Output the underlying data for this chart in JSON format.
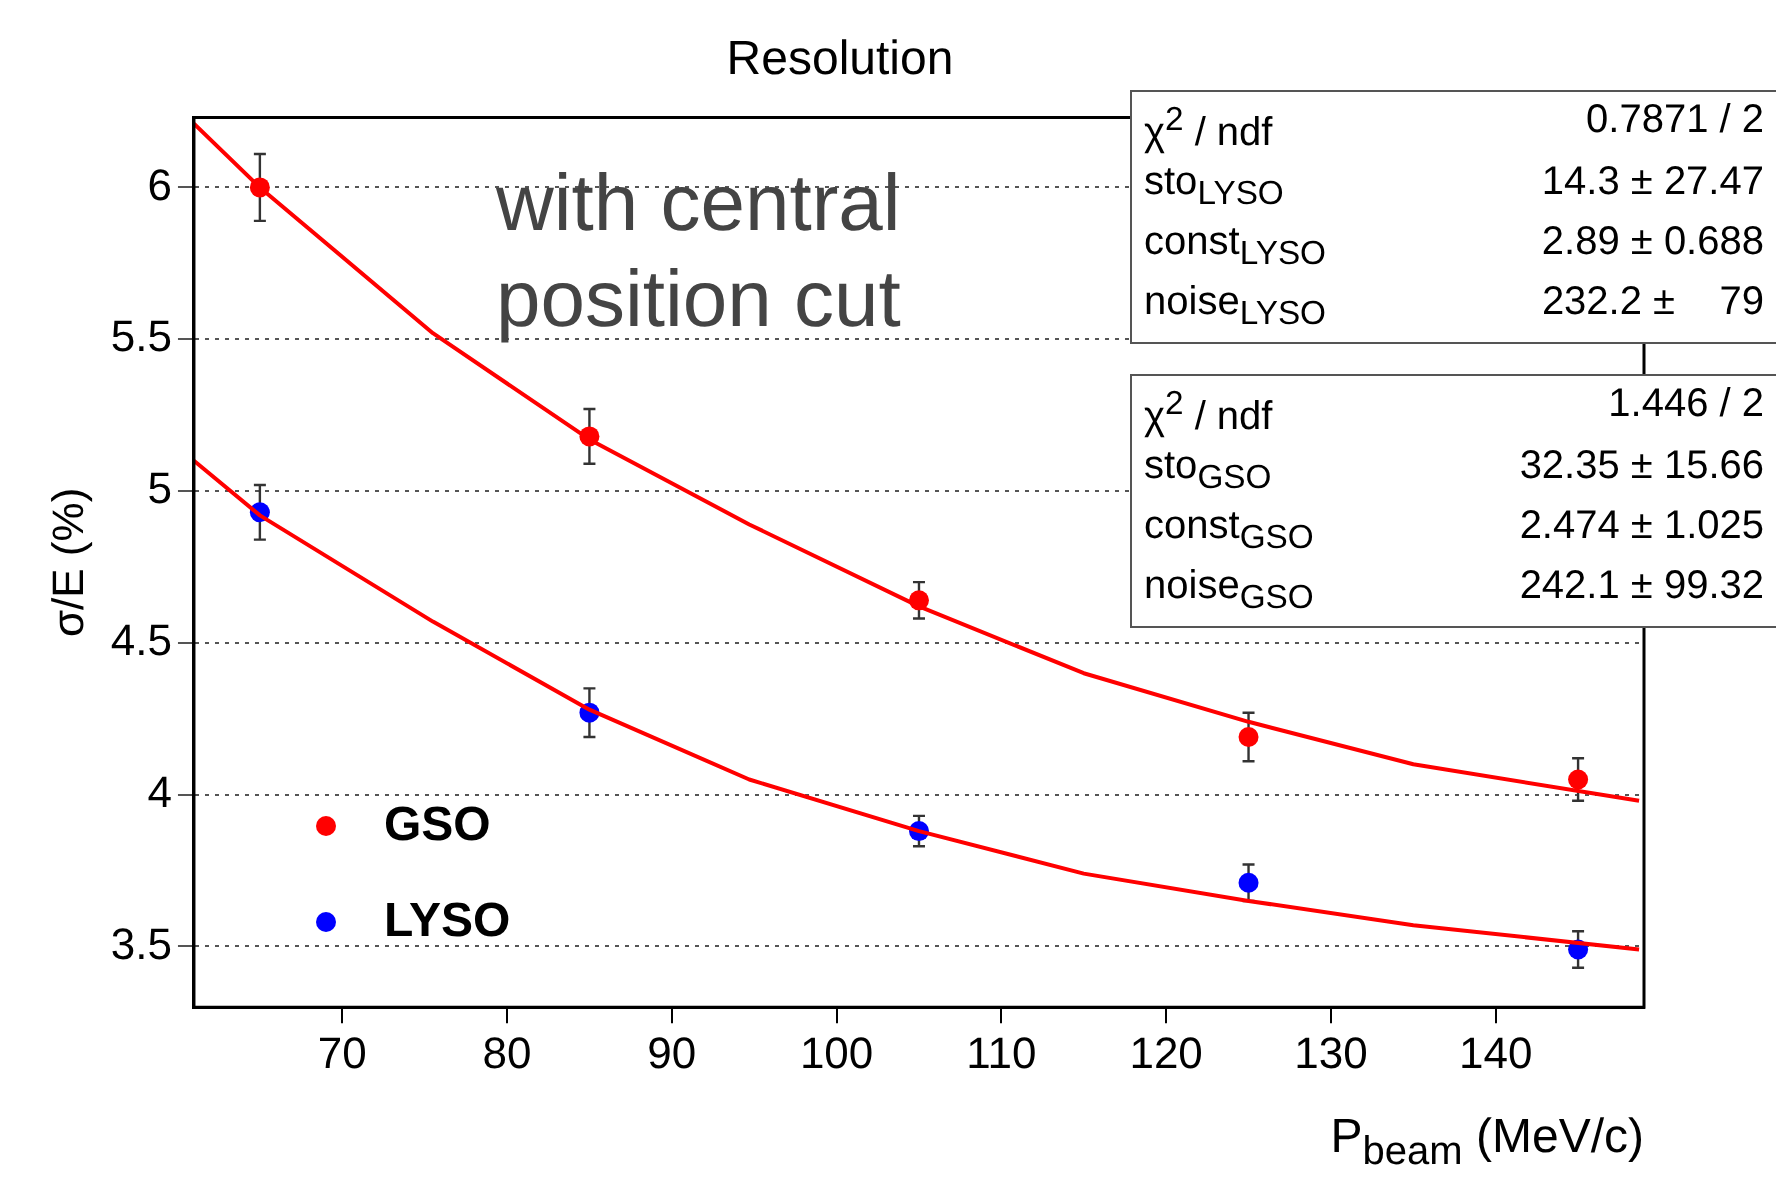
{
  "chart_data": {
    "type": "scatter",
    "title": "Resolution",
    "xlabel": "P$_{beam}$ (MeV/c)",
    "ylabel": "σ/E (%)",
    "xlim": [
      61,
      149
    ],
    "xticks": [
      70,
      80,
      90,
      100,
      110,
      120,
      130,
      140
    ],
    "ylim": [
      3.3,
      6.23
    ],
    "yticks": [
      3.5,
      4,
      4.5,
      5,
      5.5,
      6
    ],
    "grid": "y",
    "legend": "bottom left",
    "marker": "circle",
    "series": [
      {
        "name": "GSO",
        "color": "#ff0000",
        "x": [
          65,
          85,
          105,
          125,
          145
        ],
        "values": [
          6.0,
          5.18,
          4.64,
          4.19,
          4.05
        ],
        "errors": [
          0.11,
          0.09,
          0.06,
          0.08,
          0.07
        ]
      },
      {
        "name": "LYSO",
        "color": "#0000ff",
        "x": [
          65,
          85,
          105,
          125,
          145
        ],
        "values": [
          4.93,
          4.27,
          3.88,
          3.71,
          3.49
        ],
        "errors": [
          0.09,
          0.08,
          0.05,
          0.06,
          0.06
        ]
      },
      {
        "type": "line",
        "color": "#ff0000",
        "marker": "none",
        "x": [
          61,
          65,
          75.5,
          85,
          94.7,
          105,
          115,
          125,
          135,
          148.7
        ],
        "values": [
          6.21,
          6.0,
          5.52,
          5.17,
          4.89,
          4.62,
          4.4,
          4.24,
          4.1,
          3.98
        ]
      },
      {
        "type": "line",
        "color": "#ff0000",
        "marker": "none",
        "x": [
          61,
          65,
          75.5,
          85,
          94.7,
          105,
          115,
          125,
          135,
          148.7
        ],
        "values": [
          5.1,
          4.92,
          4.57,
          4.28,
          4.05,
          3.88,
          3.74,
          3.65,
          3.57,
          3.49
        ]
      }
    ],
    "annotations": [
      "with central position cut",
      "χ$^{2}$ / ndf",
      "0.7871 / 2",
      "sto$_{LYSO}$",
      "14.3 ± 27.47",
      "const$_{LYSO}$",
      "2.89 ± 0.688",
      "noise$_{LYSO}$",
      "232.2 ±    79",
      "χ$^{2}$ / ndf",
      "1.446 / 2",
      "sto$_{GSO}$",
      "32.35 ± 15.66",
      "const$_{GSO}$",
      "2.474 ± 1.025",
      "noise$_{GSO}$",
      "242.1 ± 99.32"
    ]
  }
}
